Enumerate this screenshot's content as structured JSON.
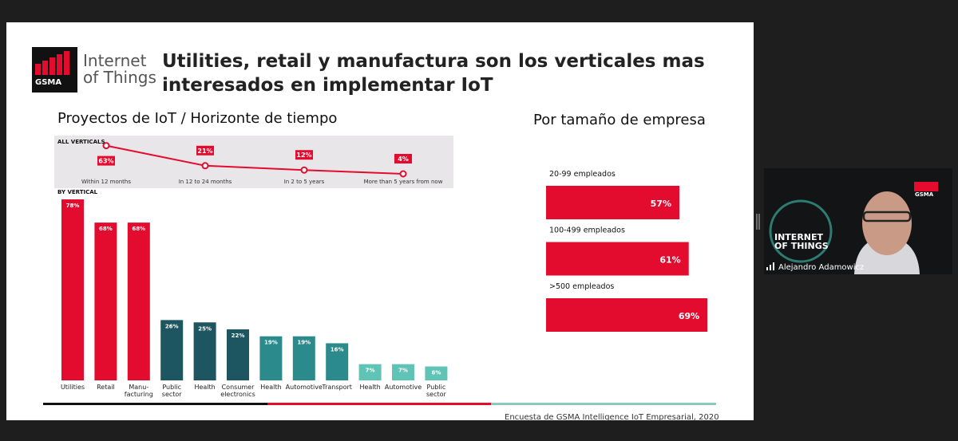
{
  "slide": {
    "logo_brand": "GSMA",
    "logo_text": "Internet\nof Things",
    "title": "Utilities, retail y manufactura son los verticales mas\ninteresados en implementar IoT",
    "source": "Encuesta de GSMA Intelligence IoT Empresarial, 2020"
  },
  "webcam": {
    "participant": "Alejandro Adamowicz",
    "backdrop_title": "INTERNET\nOF THINGS",
    "backdrop_brand": "GSMA"
  },
  "chart_data": [
    {
      "type": "line",
      "title": "Proyectos de IoT / Horizonte de tiempo",
      "label": "ALL VERTICALS",
      "categories": [
        "Within 12 months",
        "In 12 to 24 months",
        "In 2 to 5 years",
        "More than 5 years from now"
      ],
      "values": [
        63,
        21,
        12,
        4
      ],
      "value_labels": [
        "63%",
        "21%",
        "12%",
        "4%"
      ],
      "color": "#e30c2f"
    },
    {
      "type": "bar",
      "title": "BY VERTICAL",
      "categories": [
        "Utilities",
        "Retail",
        "Manu-\nfacturing",
        "Public\nsector",
        "Health",
        "Consumer\nelectronics",
        "Health",
        "Automotive",
        "Transport",
        "Health",
        "Automotive",
        "Public\nsector"
      ],
      "values": [
        78,
        68,
        68,
        26,
        25,
        22,
        19,
        19,
        16,
        7,
        7,
        6
      ],
      "value_labels": [
        "78%",
        "68%",
        "68%",
        "26%",
        "25%",
        "22%",
        "19%",
        "19%",
        "16%",
        "7%",
        "7%",
        "6%"
      ],
      "colors": [
        "#e30c2f",
        "#e30c2f",
        "#e30c2f",
        "#1d5660",
        "#1d5660",
        "#1d5660",
        "#2b8a8c",
        "#2b8a8c",
        "#2b8a8c",
        "#5fc3b6",
        "#5fc3b6",
        "#5fc3b6"
      ]
    },
    {
      "type": "hbar",
      "title": "Por tamaño de empresa",
      "categories": [
        "20-99 empleados",
        "100-499 empleados",
        ">500 empleados"
      ],
      "values": [
        57,
        61,
        69
      ],
      "value_labels": [
        "57%",
        "61%",
        "69%"
      ],
      "color": "#e30c2f"
    }
  ]
}
